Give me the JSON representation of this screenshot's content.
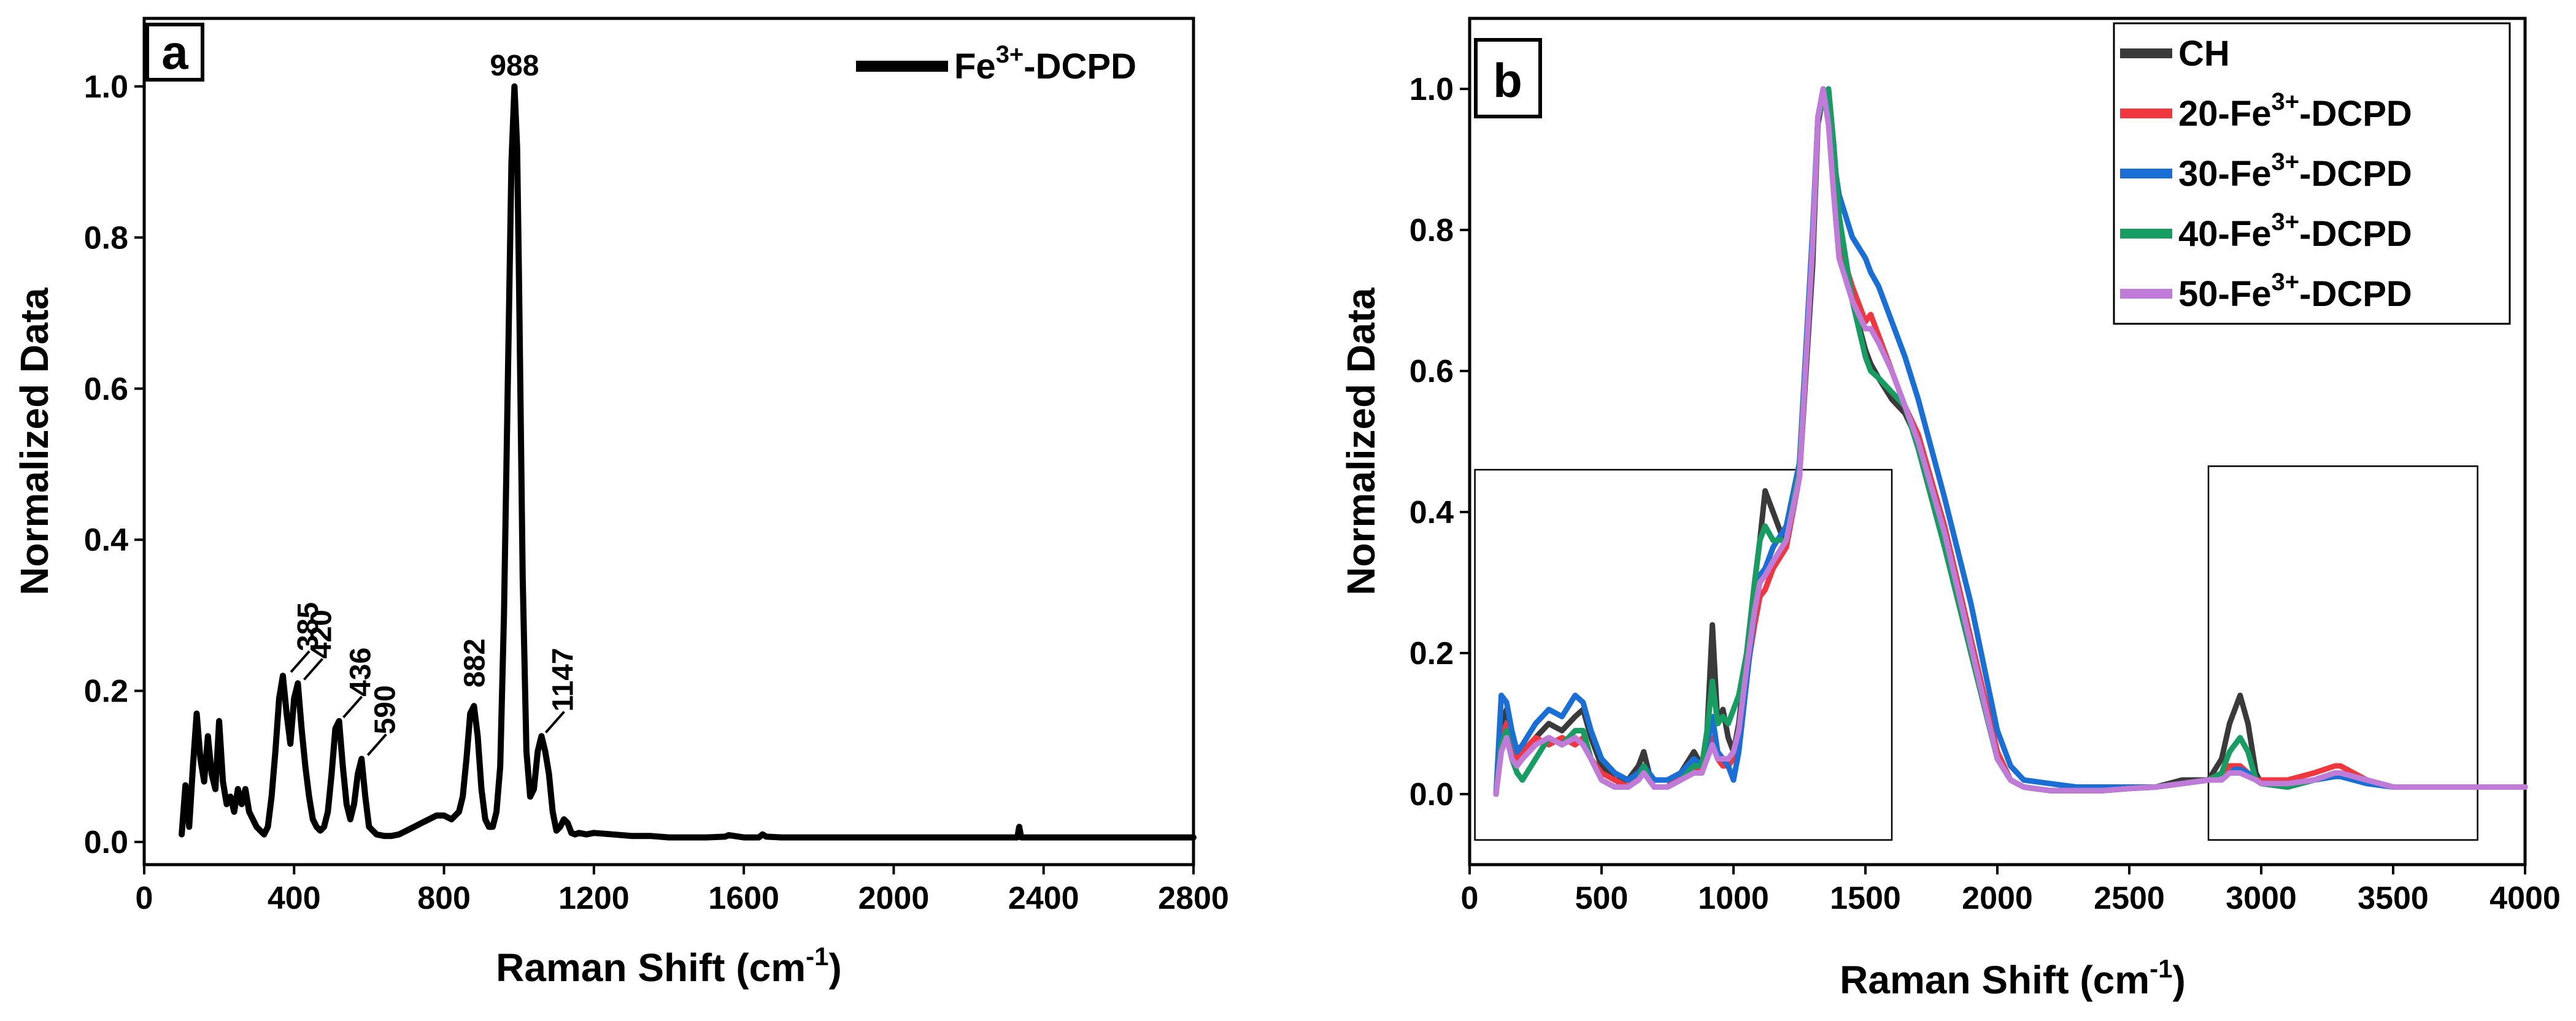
{
  "chart_data": [
    {
      "panel": "a",
      "type": "line",
      "xlabel": "Raman Shift (cm",
      "xlabel_sup": "-1",
      "xlabel_end": ")",
      "ylabel": "Normalized Data",
      "xlim": [
        0,
        2800
      ],
      "ylim": [
        -0.03,
        1.09
      ],
      "xticks": [
        0,
        400,
        800,
        1200,
        1600,
        2000,
        2400,
        2800
      ],
      "yticks": [
        0.0,
        0.2,
        0.4,
        0.6,
        0.8,
        1.0
      ],
      "ytick_labels": [
        "0.0",
        "0.2",
        "0.4",
        "0.6",
        "0.8",
        "1.0"
      ],
      "legend": {
        "position": "top-right",
        "prefix": "Fe",
        "sup": "3+",
        "suffix": "-DCPD"
      },
      "series": [
        {
          "name": "Fe3+-DCPD",
          "color": "#000000",
          "x": [
            100,
            110,
            120,
            130,
            140,
            150,
            160,
            170,
            180,
            190,
            200,
            210,
            220,
            230,
            240,
            250,
            260,
            270,
            280,
            290,
            300,
            310,
            320,
            330,
            340,
            350,
            360,
            370,
            380,
            390,
            400,
            410,
            420,
            430,
            440,
            450,
            460,
            470,
            480,
            490,
            500,
            510,
            520,
            530,
            540,
            550,
            560,
            570,
            580,
            590,
            600,
            620,
            640,
            660,
            680,
            700,
            720,
            740,
            760,
            780,
            800,
            820,
            840,
            850,
            860,
            870,
            880,
            890,
            900,
            910,
            920,
            930,
            940,
            950,
            960,
            970,
            980,
            988,
            995,
            1000,
            1010,
            1020,
            1030,
            1040,
            1050,
            1060,
            1070,
            1080,
            1090,
            1100,
            1110,
            1120,
            1130,
            1140,
            1150,
            1160,
            1180,
            1200,
            1250,
            1300,
            1350,
            1400,
            1500,
            1550,
            1560,
            1600,
            1640,
            1650,
            1660,
            1700,
            1800,
            1900,
            2000,
            2100,
            2200,
            2300,
            2330,
            2335,
            2340,
            2400,
            2500,
            2600,
            2700,
            2800
          ],
          "y": [
            0.01,
            0.075,
            0.02,
            0.1,
            0.17,
            0.11,
            0.08,
            0.14,
            0.09,
            0.07,
            0.16,
            0.08,
            0.05,
            0.06,
            0.04,
            0.07,
            0.05,
            0.07,
            0.04,
            0.03,
            0.02,
            0.015,
            0.01,
            0.02,
            0.06,
            0.12,
            0.19,
            0.22,
            0.17,
            0.13,
            0.19,
            0.21,
            0.15,
            0.1,
            0.06,
            0.03,
            0.02,
            0.015,
            0.02,
            0.04,
            0.09,
            0.15,
            0.16,
            0.1,
            0.05,
            0.03,
            0.05,
            0.09,
            0.11,
            0.06,
            0.02,
            0.01,
            0.008,
            0.008,
            0.01,
            0.015,
            0.02,
            0.025,
            0.03,
            0.035,
            0.035,
            0.03,
            0.04,
            0.06,
            0.11,
            0.17,
            0.18,
            0.14,
            0.07,
            0.03,
            0.02,
            0.02,
            0.04,
            0.1,
            0.3,
            0.6,
            0.9,
            1.0,
            0.92,
            0.75,
            0.35,
            0.12,
            0.06,
            0.07,
            0.12,
            0.14,
            0.12,
            0.09,
            0.04,
            0.015,
            0.02,
            0.03,
            0.025,
            0.012,
            0.01,
            0.012,
            0.01,
            0.012,
            0.01,
            0.008,
            0.008,
            0.006,
            0.006,
            0.007,
            0.009,
            0.006,
            0.006,
            0.01,
            0.007,
            0.006,
            0.006,
            0.006,
            0.006,
            0.006,
            0.006,
            0.006,
            0.006,
            0.02,
            0.006,
            0.006,
            0.006,
            0.006,
            0.006,
            0.006
          ]
        }
      ],
      "annotations": [
        {
          "text": "385",
          "x": 385,
          "y": 0.22
        },
        {
          "text": "420",
          "x": 420,
          "y": 0.21
        },
        {
          "text": "436",
          "x": 525,
          "y": 0.16
        },
        {
          "text": "590",
          "x": 590,
          "y": 0.11
        },
        {
          "text": "882",
          "x": 882,
          "y": 0.18
        },
        {
          "text": "988",
          "x": 988,
          "y": 1.0
        },
        {
          "text": "1147",
          "x": 1065,
          "y": 0.14
        }
      ]
    },
    {
      "panel": "b",
      "type": "line",
      "xlabel": "Raman Shift (cm",
      "xlabel_sup": "-1",
      "xlabel_end": ")",
      "ylabel": "Normalized Data",
      "xlim": [
        0,
        4000
      ],
      "ylim": [
        -0.1,
        1.1
      ],
      "xticks": [
        0,
        500,
        1000,
        1500,
        2000,
        2500,
        3000,
        3500,
        4000
      ],
      "yticks": [
        0.0,
        0.2,
        0.4,
        0.6,
        0.8,
        1.0
      ],
      "ytick_labels": [
        "0.0",
        "0.2",
        "0.4",
        "0.6",
        "0.8",
        "1.0"
      ],
      "legend": {
        "position": "top-right"
      },
      "highlight_boxes": [
        {
          "x0": 20,
          "x1": 1600,
          "y0": -0.065,
          "y1": 0.46
        },
        {
          "x0": 2800,
          "x1": 3820,
          "y0": -0.065,
          "y1": 0.465
        }
      ],
      "x": [
        100,
        120,
        140,
        160,
        180,
        200,
        250,
        300,
        350,
        400,
        430,
        460,
        500,
        550,
        600,
        640,
        660,
        680,
        700,
        750,
        800,
        850,
        880,
        900,
        920,
        940,
        960,
        980,
        1000,
        1020,
        1050,
        1080,
        1100,
        1120,
        1150,
        1200,
        1250,
        1300,
        1320,
        1340,
        1360,
        1380,
        1400,
        1450,
        1500,
        1520,
        1550,
        1600,
        1650,
        1700,
        1800,
        1900,
        2000,
        2050,
        2100,
        2200,
        2300,
        2400,
        2500,
        2600,
        2700,
        2800,
        2850,
        2880,
        2900,
        2920,
        2950,
        2980,
        3000,
        3100,
        3200,
        3280,
        3300,
        3400,
        3500,
        3600,
        3700,
        3800,
        3900,
        4000
      ],
      "series": [
        {
          "name": "CH",
          "color": "#3a3a3a",
          "y": [
            0.0,
            0.1,
            0.12,
            0.08,
            0.06,
            0.05,
            0.08,
            0.1,
            0.09,
            0.11,
            0.12,
            0.08,
            0.04,
            0.02,
            0.02,
            0.04,
            0.06,
            0.03,
            0.02,
            0.02,
            0.03,
            0.06,
            0.04,
            0.09,
            0.24,
            0.1,
            0.12,
            0.08,
            0.06,
            0.1,
            0.2,
            0.3,
            0.36,
            0.43,
            0.4,
            0.35,
            0.45,
            0.75,
            0.95,
            0.99,
            1.0,
            0.92,
            0.82,
            0.7,
            0.63,
            0.61,
            0.59,
            0.56,
            0.54,
            0.5,
            0.36,
            0.2,
            0.05,
            0.02,
            0.01,
            0.005,
            0.005,
            0.005,
            0.008,
            0.01,
            0.02,
            0.02,
            0.05,
            0.1,
            0.12,
            0.14,
            0.1,
            0.03,
            0.015,
            0.01,
            0.02,
            0.03,
            0.03,
            0.02,
            0.01,
            0.01,
            0.01,
            0.01,
            0.01,
            0.01
          ]
        },
        {
          "name": "20-Fe3+-DCPD",
          "color": "#f0373f",
          "y": [
            0.0,
            0.08,
            0.1,
            0.07,
            0.05,
            0.06,
            0.08,
            0.07,
            0.08,
            0.07,
            0.08,
            0.05,
            0.03,
            0.02,
            0.01,
            0.03,
            0.04,
            0.02,
            0.01,
            0.01,
            0.03,
            0.04,
            0.03,
            0.06,
            0.08,
            0.05,
            0.04,
            0.04,
            0.05,
            0.08,
            0.17,
            0.24,
            0.28,
            0.29,
            0.32,
            0.35,
            0.45,
            0.78,
            0.96,
            1.0,
            0.95,
            0.86,
            0.78,
            0.72,
            0.67,
            0.68,
            0.65,
            0.6,
            0.55,
            0.51,
            0.38,
            0.22,
            0.06,
            0.02,
            0.01,
            0.005,
            0.005,
            0.005,
            0.008,
            0.01,
            0.015,
            0.02,
            0.03,
            0.04,
            0.04,
            0.04,
            0.03,
            0.02,
            0.02,
            0.02,
            0.03,
            0.04,
            0.04,
            0.02,
            0.01,
            0.01,
            0.01,
            0.01,
            0.01,
            0.01
          ]
        },
        {
          "name": "30-Fe3+-DCPD",
          "color": "#1a6fd6",
          "y": [
            0.0,
            0.14,
            0.13,
            0.09,
            0.06,
            0.07,
            0.1,
            0.12,
            0.11,
            0.14,
            0.13,
            0.09,
            0.05,
            0.03,
            0.02,
            0.03,
            0.04,
            0.03,
            0.02,
            0.02,
            0.03,
            0.05,
            0.04,
            0.07,
            0.11,
            0.06,
            0.05,
            0.04,
            0.02,
            0.06,
            0.16,
            0.26,
            0.31,
            0.32,
            0.35,
            0.38,
            0.47,
            0.8,
            0.96,
            1.0,
            0.97,
            0.9,
            0.85,
            0.79,
            0.76,
            0.74,
            0.72,
            0.67,
            0.62,
            0.56,
            0.42,
            0.27,
            0.09,
            0.04,
            0.02,
            0.015,
            0.01,
            0.01,
            0.01,
            0.01,
            0.015,
            0.02,
            0.02,
            0.03,
            0.035,
            0.035,
            0.03,
            0.02,
            0.015,
            0.015,
            0.02,
            0.025,
            0.025,
            0.015,
            0.01,
            0.01,
            0.01,
            0.01,
            0.01,
            0.01
          ]
        },
        {
          "name": "40-Fe3+-DCPD",
          "color": "#179c62",
          "y": [
            0.0,
            0.07,
            0.09,
            0.05,
            0.03,
            0.02,
            0.05,
            0.08,
            0.07,
            0.09,
            0.09,
            0.05,
            0.02,
            0.01,
            0.01,
            0.02,
            0.04,
            0.02,
            0.01,
            0.01,
            0.02,
            0.04,
            0.04,
            0.09,
            0.16,
            0.1,
            0.11,
            0.1,
            0.12,
            0.14,
            0.2,
            0.3,
            0.36,
            0.38,
            0.36,
            0.36,
            0.46,
            0.78,
            0.96,
            0.98,
            1.0,
            0.92,
            0.82,
            0.7,
            0.62,
            0.6,
            0.59,
            0.57,
            0.55,
            0.49,
            0.35,
            0.2,
            0.05,
            0.02,
            0.01,
            0.005,
            0.005,
            0.005,
            0.008,
            0.01,
            0.015,
            0.02,
            0.03,
            0.06,
            0.07,
            0.08,
            0.06,
            0.02,
            0.015,
            0.01,
            0.02,
            0.03,
            0.03,
            0.02,
            0.01,
            0.01,
            0.01,
            0.01,
            0.01,
            0.01
          ]
        },
        {
          "name": "50-Fe3+-DCPD",
          "color": "#c07ad8",
          "y": [
            0.0,
            0.06,
            0.08,
            0.05,
            0.04,
            0.05,
            0.07,
            0.08,
            0.07,
            0.08,
            0.07,
            0.05,
            0.02,
            0.01,
            0.01,
            0.02,
            0.03,
            0.02,
            0.01,
            0.01,
            0.02,
            0.03,
            0.03,
            0.05,
            0.07,
            0.05,
            0.05,
            0.05,
            0.06,
            0.09,
            0.18,
            0.26,
            0.3,
            0.31,
            0.33,
            0.36,
            0.45,
            0.78,
            0.96,
            1.0,
            0.95,
            0.85,
            0.76,
            0.7,
            0.66,
            0.66,
            0.64,
            0.6,
            0.55,
            0.5,
            0.37,
            0.21,
            0.05,
            0.02,
            0.01,
            0.005,
            0.005,
            0.005,
            0.008,
            0.01,
            0.015,
            0.02,
            0.02,
            0.03,
            0.03,
            0.03,
            0.025,
            0.02,
            0.015,
            0.015,
            0.02,
            0.03,
            0.03,
            0.02,
            0.01,
            0.01,
            0.01,
            0.01,
            0.01,
            0.01
          ]
        }
      ]
    }
  ],
  "legend_b": [
    {
      "prefix": "CH",
      "sup": "",
      "suffix": ""
    },
    {
      "prefix": "20-Fe",
      "sup": "3+",
      "suffix": "-DCPD"
    },
    {
      "prefix": "30-Fe",
      "sup": "3+",
      "suffix": "-DCPD"
    },
    {
      "prefix": "40-Fe",
      "sup": "3+",
      "suffix": "-DCPD"
    },
    {
      "prefix": "50-Fe",
      "sup": "3+",
      "suffix": "-DCPD"
    }
  ]
}
